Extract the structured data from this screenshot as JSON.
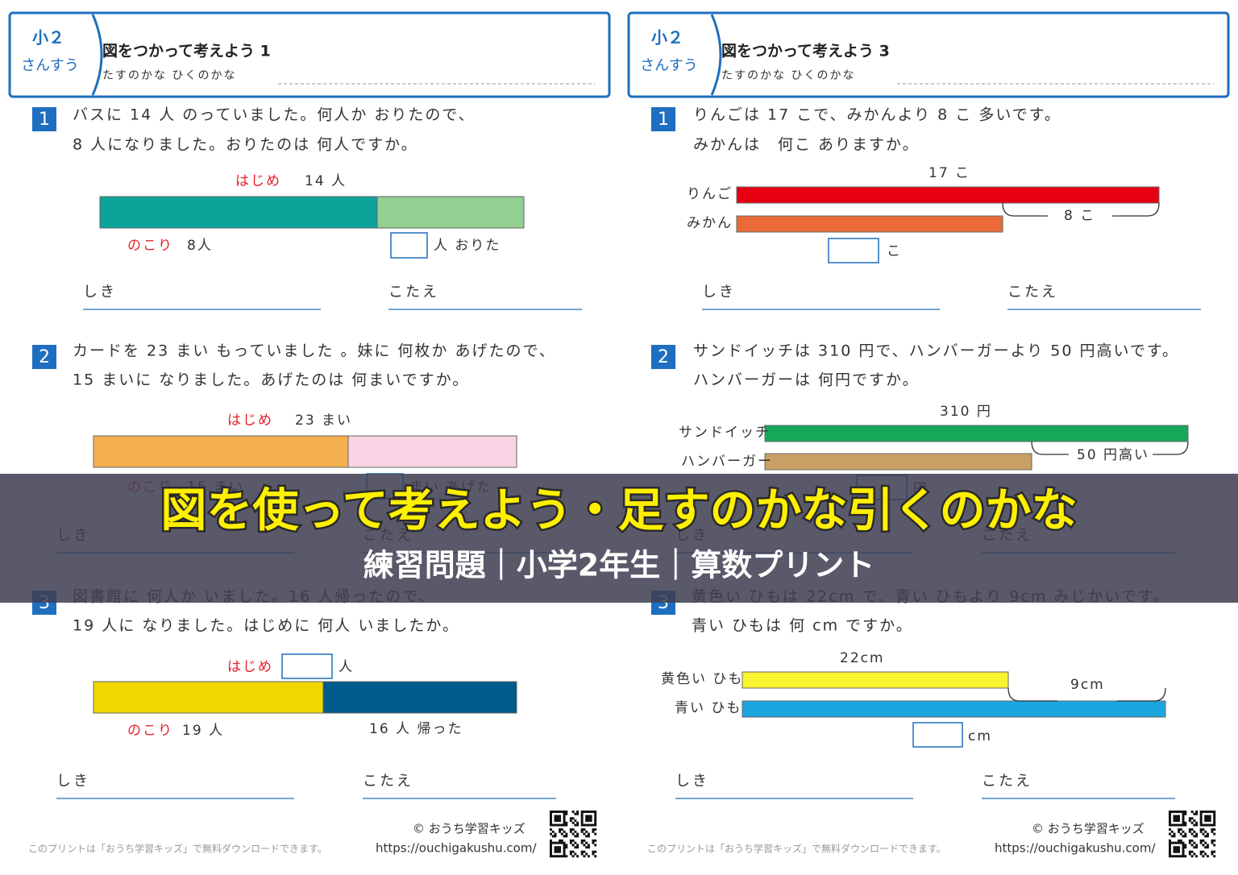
{
  "sheets": [
    {
      "header": {
        "grade": "小２",
        "subject": "さんすう",
        "title": "図をつかって考えよう 1",
        "subtitle": "たすのかな ひくのかな"
      },
      "problems": [
        {
          "number": "1",
          "lines": [
            "バスに 14 人 のっていました。何人か おりたので、",
            "8 人になりました。おりたのは 何人ですか。"
          ],
          "labels": [
            "はじめ",
            "14 人",
            "のこり",
            "8人",
            "人 おりた"
          ],
          "answer": [
            "しき",
            "こたえ"
          ]
        },
        {
          "number": "2",
          "lines": [
            "カードを 23 まい もっていました 。妹に 何枚か あげたので、",
            "15 まいに なりました。あげたのは 何まいですか。"
          ],
          "labels": [
            "はじめ",
            "23 まい",
            "のこり",
            "15 まい",
            "まい あげた"
          ],
          "answer": [
            "しき",
            "こたえ"
          ]
        },
        {
          "number": "3",
          "lines": [
            "図書館に 何人か いました。16 人帰ったので、",
            "19 人に なりました。はじめに 何人 いましたか。"
          ],
          "labels": [
            "はじめ",
            "人",
            "のこり",
            "19 人",
            "16 人 帰った"
          ],
          "answer": [
            "しき",
            "こたえ"
          ]
        }
      ],
      "footer": {
        "copyright": "© おうち学習キッズ",
        "url": "https://ouchigakushu.com/",
        "note": "このプリントは「おうち学習キッズ」で無料ダウンロードできます。"
      }
    },
    {
      "header": {
        "grade": "小２",
        "subject": "さんすう",
        "title": "図をつかって考えよう 3",
        "subtitle": "たすのかな ひくのかな"
      },
      "problems": [
        {
          "number": "1",
          "lines": [
            "りんごは 17 こで、みかんより 8 こ 多いです。",
            "みかんは　何こ ありますか。"
          ],
          "labels": [
            "17 こ",
            "りんご",
            "みかん",
            "8 こ",
            "こ"
          ],
          "answer": [
            "しき",
            "こたえ"
          ]
        },
        {
          "number": "2",
          "lines": [
            "サンドイッチは 310 円で、ハンバーガーより 50 円高いです。",
            "ハンバーガーは 何円ですか。"
          ],
          "labels": [
            "310 円",
            "サンドイッチ",
            "ハンバーガー",
            "50 円高い",
            "円"
          ],
          "answer": [
            "しき",
            "こたえ"
          ]
        },
        {
          "number": "3",
          "lines": [
            "黄色い ひもは 22cm で、青い ひもより 9cm みじかいです。",
            "青い ひもは 何 cm ですか。"
          ],
          "labels": [
            "22cm",
            "黄色い ひも",
            "青い ひも",
            "9cm",
            "cm"
          ],
          "answer": [
            "しき",
            "こたえ"
          ]
        }
      ],
      "footer": {
        "copyright": "© おうち学習キッズ",
        "url": "https://ouchigakushu.com/",
        "note": "このプリントは「おうち学習キッズ」で無料ダウンロードできます。"
      }
    }
  ],
  "banner": {
    "title": "図を使って考えよう・足すのかな引くのかな",
    "subtitle": "練習問題｜小学2年生｜算数プリント"
  }
}
